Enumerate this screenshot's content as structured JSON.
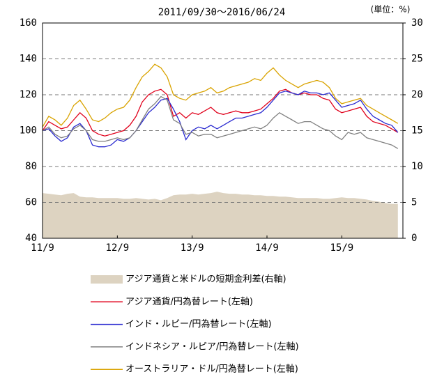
{
  "chart_data": {
    "type": "line",
    "subtitle": "2011/09/30～2016/06/24",
    "unit_label": "(単位：%)",
    "categories": [
      "11/9",
      null,
      null,
      null,
      null,
      null,
      null,
      null,
      null,
      null,
      null,
      null,
      "12/9",
      null,
      null,
      null,
      null,
      null,
      null,
      null,
      null,
      null,
      null,
      null,
      "13/9",
      null,
      null,
      null,
      null,
      null,
      null,
      null,
      null,
      null,
      null,
      null,
      "14/9",
      null,
      null,
      null,
      null,
      null,
      null,
      null,
      null,
      null,
      null,
      null,
      "15/9",
      null,
      null,
      null,
      null,
      null,
      null,
      null,
      null,
      null
    ],
    "ylim": [
      40,
      160
    ],
    "yticks": [
      40,
      60,
      80,
      100,
      120,
      140,
      160
    ],
    "y2lim": [
      0,
      30
    ],
    "y2ticks": [
      0,
      5,
      10,
      15,
      20,
      25,
      30
    ],
    "grid": true,
    "series": [
      {
        "name": "アジア通貨と米ドルの短期金利差(右軸)",
        "type": "area",
        "axis": "y2",
        "color": "#ddd3c1",
        "values": [
          6.3,
          6.2,
          6.1,
          6.0,
          6.2,
          6.3,
          5.8,
          5.7,
          5.7,
          5.6,
          5.6,
          5.6,
          5.6,
          5.5,
          5.5,
          5.6,
          5.5,
          5.4,
          5.5,
          5.3,
          5.6,
          6.0,
          6.1,
          6.1,
          6.2,
          6.1,
          6.2,
          6.3,
          6.5,
          6.3,
          6.2,
          6.2,
          6.1,
          6.1,
          6.0,
          6.0,
          5.9,
          5.9,
          5.8,
          5.8,
          5.7,
          5.6,
          5.6,
          5.6,
          5.6,
          5.5,
          5.5,
          5.6,
          5.7,
          5.6,
          5.6,
          5.5,
          5.4,
          5.2,
          5.1,
          4.9,
          4.8,
          4.8
        ]
      },
      {
        "name": "アジア通貨/円為替レート(左軸)",
        "type": "line",
        "color": "#e0001b",
        "values": [
          100,
          105,
          103,
          101,
          102,
          106,
          110,
          107,
          100,
          98,
          97,
          98,
          99,
          100,
          103,
          108,
          116,
          120,
          122,
          123,
          120,
          108,
          110,
          107,
          110,
          109,
          111,
          113,
          110,
          109,
          110,
          111,
          110,
          110,
          111,
          112,
          115,
          118,
          122,
          123,
          121,
          120,
          121,
          120,
          120,
          118,
          117,
          112,
          110,
          111,
          112,
          113,
          108,
          105,
          104,
          103,
          101,
          99
        ]
      },
      {
        "name": "インド・ルピー/円為替レート(左軸)",
        "type": "line",
        "color": "#2a2ad0",
        "values": [
          100,
          101,
          97,
          94,
          96,
          102,
          104,
          100,
          92,
          91,
          91,
          92,
          95,
          94,
          96,
          100,
          105,
          110,
          113,
          117,
          118,
          112,
          105,
          95,
          100,
          102,
          101,
          103,
          101,
          103,
          105,
          107,
          107,
          108,
          109,
          110,
          113,
          117,
          121,
          122,
          121,
          120,
          122,
          121,
          121,
          120,
          121,
          117,
          113,
          114,
          115,
          117,
          112,
          108,
          106,
          104,
          103,
          99
        ]
      },
      {
        "name": "インドネシア・ルピア/円為替レート(左軸)",
        "type": "line",
        "color": "#808080",
        "values": [
          100,
          102,
          98,
          96,
          97,
          101,
          103,
          100,
          95,
          94,
          94,
          95,
          96,
          95,
          96,
          100,
          106,
          112,
          115,
          119,
          117,
          106,
          104,
          98,
          99,
          97,
          98,
          98,
          96,
          97,
          98,
          99,
          100,
          101,
          102,
          101,
          103,
          107,
          110,
          108,
          106,
          104,
          105,
          105,
          103,
          101,
          100,
          97,
          95,
          99,
          98,
          99,
          96,
          95,
          94,
          93,
          92,
          90
        ]
      },
      {
        "name": "オーストラリア・ドル/円為替レート(左軸)",
        "type": "line",
        "color": "#d9a300",
        "values": [
          102,
          108,
          106,
          103,
          107,
          114,
          117,
          112,
          106,
          105,
          107,
          110,
          112,
          113,
          117,
          124,
          130,
          133,
          137,
          135,
          130,
          120,
          118,
          117,
          120,
          121,
          122,
          124,
          121,
          122,
          124,
          125,
          126,
          127,
          129,
          128,
          132,
          135,
          131,
          128,
          126,
          124,
          126,
          127,
          128,
          127,
          124,
          118,
          115,
          116,
          117,
          118,
          114,
          112,
          110,
          108,
          106,
          104
        ]
      }
    ]
  }
}
